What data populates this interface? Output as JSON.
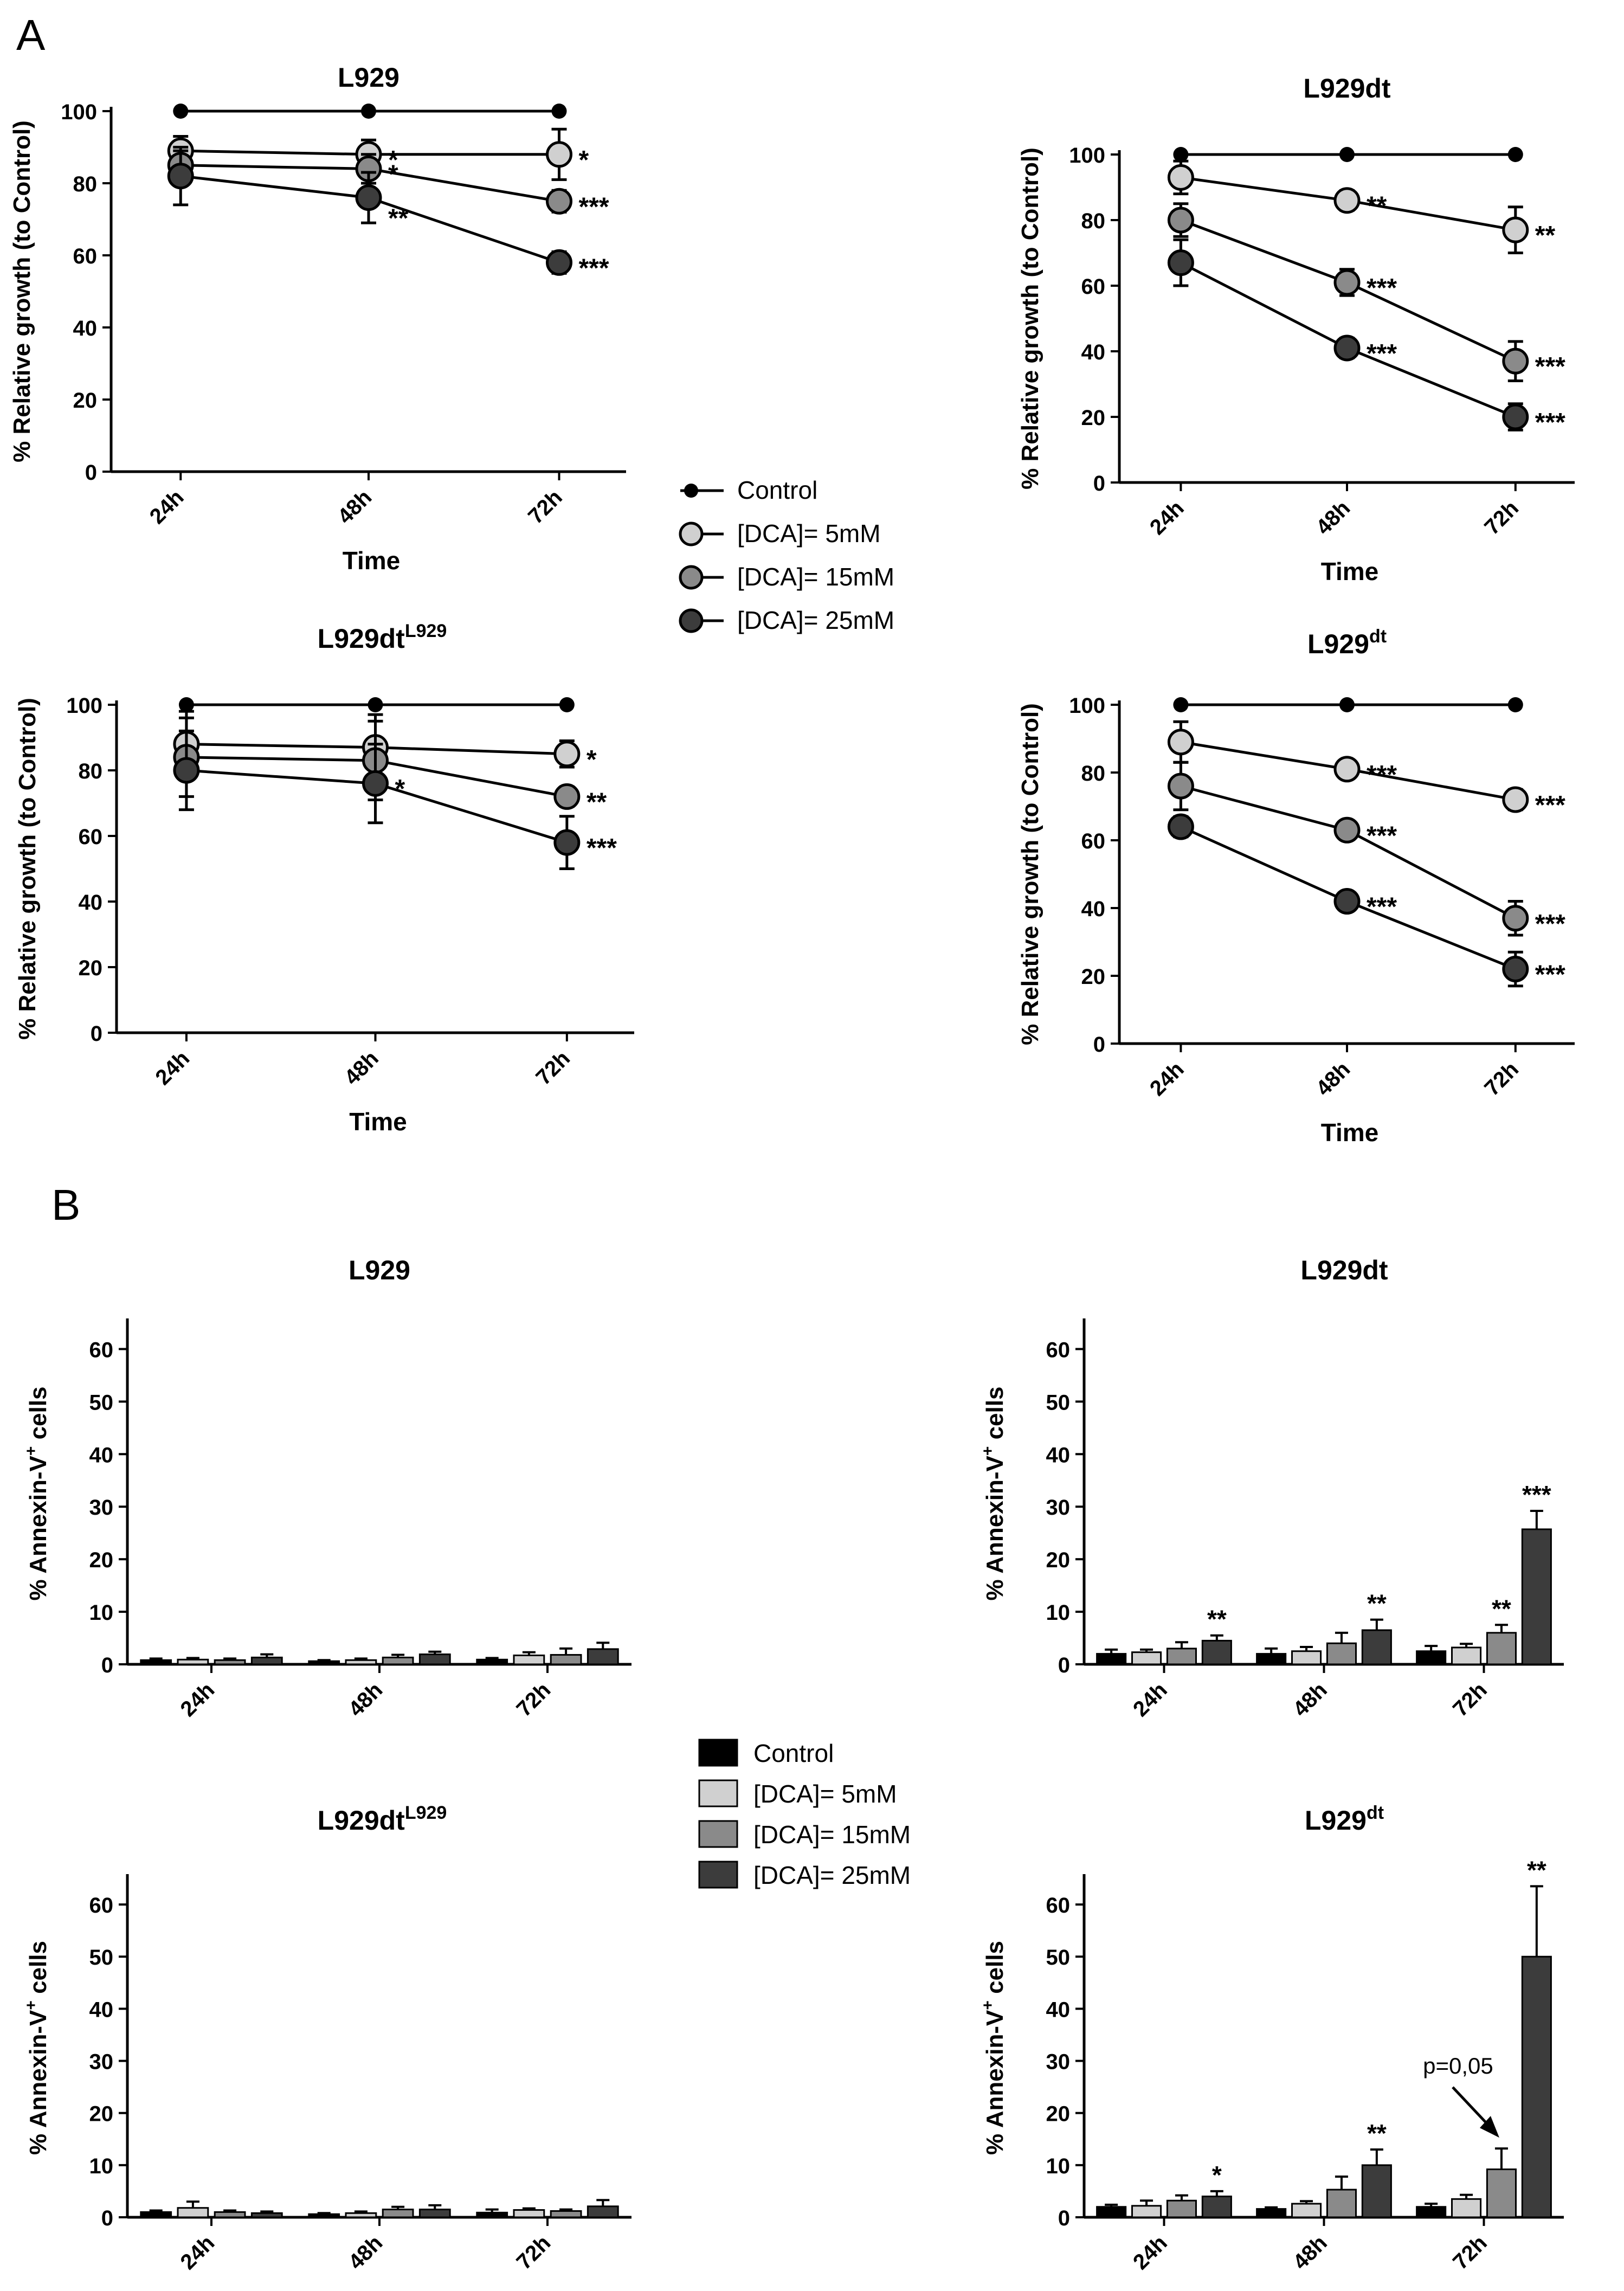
{
  "figure": {
    "panel_a": "A",
    "panel_b": "B"
  },
  "legend_a": [
    {
      "label": "Control",
      "color": "#000000"
    },
    {
      "label": "[DCA]= 5mM",
      "color": "#d0d0d0"
    },
    {
      "label": "[DCA]= 15mM",
      "color": "#8a8a8a"
    },
    {
      "label": "[DCA]= 25mM",
      "color": "#3c3c3c"
    }
  ],
  "legend_b": [
    {
      "label": "Control",
      "color": "#000000"
    },
    {
      "label": "[DCA]= 5mM",
      "color": "#d0d0d0"
    },
    {
      "label": "[DCA]= 15mM",
      "color": "#8a8a8a"
    },
    {
      "label": "[DCA]= 25mM",
      "color": "#3c3c3c"
    }
  ],
  "chart_data": [
    {
      "panel": "A",
      "type": "line",
      "title": "L929",
      "title_sup": "",
      "xlabel": "Time",
      "ylabel": "% Relative growth (to Control)",
      "categories": [
        "24h",
        "48h",
        "72h"
      ],
      "ylim": [
        0,
        100
      ],
      "yticks": [
        0,
        20,
        40,
        60,
        80,
        100
      ],
      "series": [
        {
          "name": "Control",
          "values": [
            100,
            100,
            100
          ],
          "err": [
            0,
            0,
            0
          ],
          "sig": [
            "",
            "",
            ""
          ]
        },
        {
          "name": "[DCA]= 5mM",
          "values": [
            89,
            88,
            88
          ],
          "err": [
            4,
            4,
            7
          ],
          "sig": [
            "",
            "*",
            "*"
          ]
        },
        {
          "name": "[DCA]= 15mM",
          "values": [
            85,
            84,
            75
          ],
          "err": [
            4,
            4,
            3
          ],
          "sig": [
            "",
            "*",
            "***"
          ]
        },
        {
          "name": "[DCA]= 25mM",
          "values": [
            82,
            76,
            58
          ],
          "err": [
            8,
            7,
            3
          ],
          "sig": [
            "",
            "**",
            "***"
          ]
        }
      ]
    },
    {
      "panel": "A",
      "type": "line",
      "title": "L929dt",
      "title_sup": "",
      "xlabel": "Time",
      "ylabel": "% Relative growth (to Control)",
      "categories": [
        "24h",
        "48h",
        "72h"
      ],
      "ylim": [
        0,
        100
      ],
      "yticks": [
        0,
        20,
        40,
        60,
        80,
        100
      ],
      "series": [
        {
          "name": "Control",
          "values": [
            100,
            100,
            100
          ],
          "err": [
            0,
            0,
            0
          ],
          "sig": [
            "",
            "",
            ""
          ]
        },
        {
          "name": "[DCA]= 5mM",
          "values": [
            93,
            86,
            77
          ],
          "err": [
            5,
            3,
            7
          ],
          "sig": [
            "",
            "**",
            "**"
          ]
        },
        {
          "name": "[DCA]= 15mM",
          "values": [
            80,
            61,
            37
          ],
          "err": [
            5,
            4,
            6
          ],
          "sig": [
            "",
            "***",
            "***"
          ]
        },
        {
          "name": "[DCA]= 25mM",
          "values": [
            67,
            41,
            20
          ],
          "err": [
            7,
            3,
            4
          ],
          "sig": [
            "",
            "***",
            "***"
          ]
        }
      ]
    },
    {
      "panel": "A",
      "type": "line",
      "title": "L929dt",
      "title_sup": "L929",
      "xlabel": "Time",
      "ylabel": "% Relative growth (to Control)",
      "categories": [
        "24h",
        "48h",
        "72h"
      ],
      "ylim": [
        0,
        100
      ],
      "yticks": [
        0,
        20,
        40,
        60,
        80,
        100
      ],
      "series": [
        {
          "name": "Control",
          "values": [
            100,
            100,
            100
          ],
          "err": [
            0,
            0,
            0
          ],
          "sig": [
            "",
            "",
            ""
          ]
        },
        {
          "name": "[DCA]= 5mM",
          "values": [
            88,
            87,
            85
          ],
          "err": [
            10,
            10,
            4
          ],
          "sig": [
            "",
            "",
            "*"
          ]
        },
        {
          "name": "[DCA]= 15mM",
          "values": [
            84,
            83,
            72
          ],
          "err": [
            12,
            12,
            3
          ],
          "sig": [
            "",
            "",
            "**"
          ]
        },
        {
          "name": "[DCA]= 25mM",
          "values": [
            80,
            76,
            58
          ],
          "err": [
            12,
            12,
            8
          ],
          "sig": [
            "",
            "*",
            "***"
          ]
        }
      ]
    },
    {
      "panel": "A",
      "type": "line",
      "title": "L929",
      "title_sup": "dt",
      "xlabel": "Time",
      "ylabel": "% Relative growth (to Control)",
      "categories": [
        "24h",
        "48h",
        "72h"
      ],
      "ylim": [
        0,
        100
      ],
      "yticks": [
        0,
        20,
        40,
        60,
        80,
        100
      ],
      "series": [
        {
          "name": "Control",
          "values": [
            100,
            100,
            100
          ],
          "err": [
            0,
            0,
            0
          ],
          "sig": [
            "",
            "",
            ""
          ]
        },
        {
          "name": "[DCA]= 5mM",
          "values": [
            89,
            81,
            72
          ],
          "err": [
            6,
            2,
            3
          ],
          "sig": [
            "",
            "***",
            "***"
          ]
        },
        {
          "name": "[DCA]= 15mM",
          "values": [
            76,
            63,
            37
          ],
          "err": [
            7,
            2,
            5
          ],
          "sig": [
            "",
            "***",
            "***"
          ]
        },
        {
          "name": "[DCA]= 25mM",
          "values": [
            64,
            42,
            22
          ],
          "err": [
            3,
            1,
            5
          ],
          "sig": [
            "",
            "***",
            "***"
          ]
        }
      ]
    },
    {
      "panel": "B",
      "type": "bar",
      "title": "L929",
      "title_sup": "",
      "xlabel": "",
      "ylabel": "% Annexin-V",
      "ylabel_sup": "+",
      "ylabel_tail": " cells",
      "categories": [
        "24h",
        "48h",
        "72h"
      ],
      "ylim": [
        0,
        65
      ],
      "yticks": [
        0,
        10,
        20,
        30,
        40,
        50,
        60
      ],
      "series": [
        {
          "name": "Control",
          "values": [
            0.8,
            0.6,
            0.9
          ],
          "err": [
            0.3,
            0.2,
            0.3
          ],
          "sig": [
            "",
            "",
            ""
          ]
        },
        {
          "name": "[DCA]= 5mM",
          "values": [
            0.9,
            0.8,
            1.7
          ],
          "err": [
            0.3,
            0.3,
            0.6
          ],
          "sig": [
            "",
            "",
            ""
          ]
        },
        {
          "name": "[DCA]= 15mM",
          "values": [
            0.8,
            1.3,
            1.8
          ],
          "err": [
            0.3,
            0.5,
            1.2
          ],
          "sig": [
            "",
            "",
            ""
          ]
        },
        {
          "name": "[DCA]= 25mM",
          "values": [
            1.3,
            1.9,
            2.9
          ],
          "err": [
            0.6,
            0.5,
            1.2
          ],
          "sig": [
            "",
            "",
            ""
          ]
        }
      ]
    },
    {
      "panel": "B",
      "type": "bar",
      "title": "L929dt",
      "title_sup": "",
      "xlabel": "",
      "ylabel": "% Annexin-V",
      "ylabel_sup": "+",
      "ylabel_tail": " cells",
      "categories": [
        "24h",
        "48h",
        "72h"
      ],
      "ylim": [
        0,
        65
      ],
      "yticks": [
        0,
        10,
        20,
        30,
        40,
        50,
        60
      ],
      "series": [
        {
          "name": "Control",
          "values": [
            2,
            2,
            2.5
          ],
          "err": [
            0.8,
            1,
            1
          ],
          "sig": [
            "",
            "",
            ""
          ]
        },
        {
          "name": "[DCA]= 5mM",
          "values": [
            2.3,
            2.5,
            3.2
          ],
          "err": [
            0.5,
            0.8,
            0.7
          ],
          "sig": [
            "",
            "",
            ""
          ]
        },
        {
          "name": "[DCA]= 15mM",
          "values": [
            3,
            4,
            6
          ],
          "err": [
            1.2,
            2,
            1.5
          ],
          "sig": [
            "",
            "",
            "**"
          ]
        },
        {
          "name": "[DCA]= 25mM",
          "values": [
            4.5,
            6.5,
            25.7
          ],
          "err": [
            1,
            2,
            3.5
          ],
          "sig": [
            "**",
            "**",
            "***"
          ]
        }
      ]
    },
    {
      "panel": "B",
      "type": "bar",
      "title": "L929dt",
      "title_sup": "L929",
      "xlabel": "",
      "ylabel": "% Annexin-V",
      "ylabel_sup": "+",
      "ylabel_tail": " cells",
      "categories": [
        "24h",
        "48h",
        "72h"
      ],
      "ylim": [
        0,
        65
      ],
      "yticks": [
        0,
        10,
        20,
        30,
        40,
        50,
        60
      ],
      "series": [
        {
          "name": "Control",
          "values": [
            1,
            0.6,
            0.9
          ],
          "err": [
            0.3,
            0.2,
            0.6
          ],
          "sig": [
            "",
            "",
            ""
          ]
        },
        {
          "name": "[DCA]= 5mM",
          "values": [
            1.8,
            0.8,
            1.4
          ],
          "err": [
            1.2,
            0.3,
            0.3
          ],
          "sig": [
            "",
            "",
            ""
          ]
        },
        {
          "name": "[DCA]= 15mM",
          "values": [
            1,
            1.5,
            1.2
          ],
          "err": [
            0.3,
            0.5,
            0.3
          ],
          "sig": [
            "",
            "",
            ""
          ]
        },
        {
          "name": "[DCA]= 25mM",
          "values": [
            0.8,
            1.5,
            2.1
          ],
          "err": [
            0.3,
            0.8,
            1.2
          ],
          "sig": [
            "",
            "",
            ""
          ]
        }
      ]
    },
    {
      "panel": "B",
      "type": "bar",
      "title": "L929",
      "title_sup": "dt",
      "xlabel": "",
      "ylabel": "% Annexin-V",
      "ylabel_sup": "+",
      "ylabel_tail": " cells",
      "categories": [
        "24h",
        "48h",
        "72h"
      ],
      "ylim": [
        0,
        65
      ],
      "yticks": [
        0,
        10,
        20,
        30,
        40,
        50,
        60
      ],
      "series": [
        {
          "name": "Control",
          "values": [
            2,
            1.6,
            2
          ],
          "err": [
            0.4,
            0.3,
            0.6
          ],
          "sig": [
            "",
            "",
            ""
          ]
        },
        {
          "name": "[DCA]= 5mM",
          "values": [
            2.2,
            2.6,
            3.5
          ],
          "err": [
            1,
            0.5,
            0.8
          ],
          "sig": [
            "",
            "",
            ""
          ]
        },
        {
          "name": "[DCA]= 15mM",
          "values": [
            3.2,
            5.3,
            9.2
          ],
          "err": [
            1,
            2.5,
            4
          ],
          "sig": [
            "",
            "",
            ""
          ]
        },
        {
          "name": "[DCA]= 25mM",
          "values": [
            4,
            10,
            50
          ],
          "err": [
            1,
            3,
            13.5
          ],
          "sig": [
            "*",
            "**",
            "**"
          ]
        }
      ],
      "annotation": "p=0,05"
    }
  ]
}
